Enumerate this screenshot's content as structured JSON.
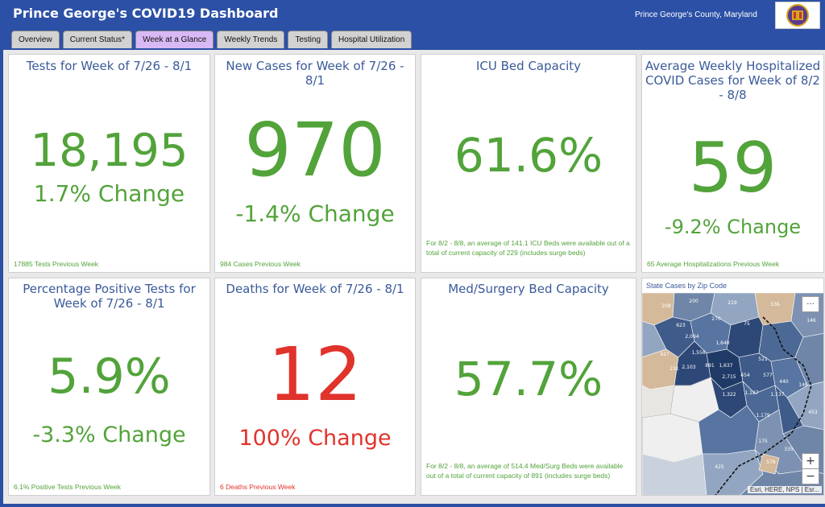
{
  "header": {
    "title": "Prince George's COVID19 Dashboard",
    "county": "Prince George's County, Maryland",
    "logo_icon": "county-seal-icon"
  },
  "tabs": [
    {
      "label": "Overview",
      "active": false
    },
    {
      "label": "Current Status*",
      "active": false
    },
    {
      "label": "Week at a Glance",
      "active": true
    },
    {
      "label": "Weekly Trends",
      "active": false
    },
    {
      "label": "Testing",
      "active": false
    },
    {
      "label": "Hospital Utilization",
      "active": false
    }
  ],
  "cards": {
    "tests": {
      "title": "Tests for Week of 7/26 - 8/1",
      "value": "18,195",
      "change": "1.7% Change",
      "footer": "17885 Tests Previous Week"
    },
    "new_cases": {
      "title": "New Cases for Week of 7/26 - 8/1",
      "value": "970",
      "change": "-1.4% Change",
      "footer": "984 Cases Previous Week"
    },
    "icu": {
      "title": "ICU Bed Capacity",
      "value": "61.6%",
      "footer": "For 8/2 - 8/8, an average of 141.1 ICU Beds were available out of a total of current capacity of 229 (includes surge beds)"
    },
    "hospitalized": {
      "title": "Average Weekly Hospitalized COVID Cases for Week of 8/2 - 8/8",
      "value": "59",
      "change": "-9.2% Change",
      "footer": "65 Average Hospitalizations Previous Week"
    },
    "positivity": {
      "title": "Percentage Positive Tests for Week of 7/26 - 8/1",
      "value": "5.9%",
      "change": "-3.3% Change",
      "footer": "6.1% Positive Tests Previous Week"
    },
    "deaths": {
      "title": "Deaths for Week of 7/26 - 8/1",
      "value": "12",
      "change": "100% Change",
      "footer": "6 Deaths Previous Week"
    },
    "medsurg": {
      "title": "Med/Surgery Bed Capacity",
      "value": "57.7%",
      "footer": "For 8/2 - 8/8, an average of 514.4 Med/Surg Beds were available out of a total of current capacity of 891 (includes surge beds)"
    },
    "map": {
      "title": "State Cases by Zip Code",
      "more": "···",
      "zoom_in": "+",
      "zoom_out": "−",
      "attribution": "Esri, HERE, NPS | Esr...",
      "labels": [
        "208",
        "200",
        "219",
        "536",
        "81",
        "146",
        "623",
        "270",
        "75",
        "1,640",
        "2,094",
        "521",
        "1,556",
        "627",
        "231",
        "2,103",
        "891",
        "1,637",
        "2,715",
        "454",
        "577",
        "1,322",
        "1,187",
        "440",
        "146",
        "1,179",
        "1,137",
        "453",
        "175",
        "576",
        "335",
        "425"
      ]
    }
  },
  "colors": {
    "header_bg": "#2b50a6",
    "value_green": "#52a33a",
    "value_red": "#e0332b",
    "title_blue": "#3a5a99",
    "active_tab": "#d9b9f5"
  }
}
